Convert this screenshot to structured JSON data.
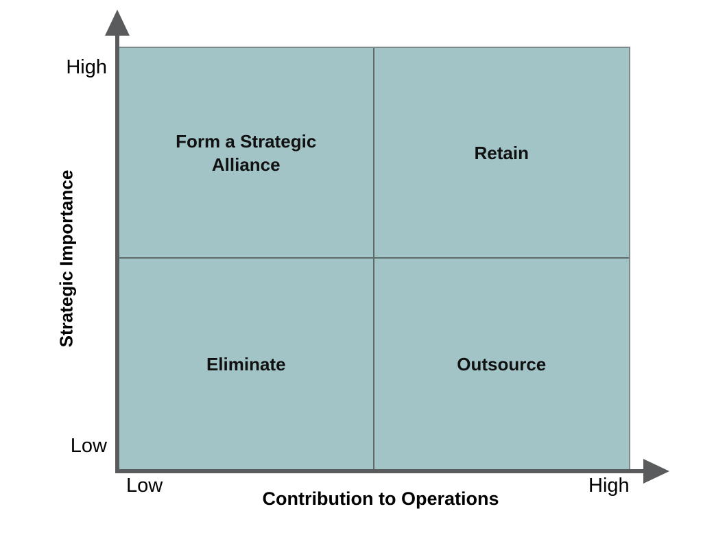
{
  "diagram": {
    "type": "2x2-quadrant-matrix",
    "y_axis": {
      "title": "Strategic Importance",
      "tick_high": "High",
      "tick_low": "Low"
    },
    "x_axis": {
      "title": "Contribution to Operations",
      "tick_low": "Low",
      "tick_high": "High"
    },
    "quadrants": {
      "top_left": "Form a Strategic Alliance",
      "top_right": "Retain",
      "bottom_left": "Eliminate",
      "bottom_right": "Outsource"
    },
    "colors": {
      "quadrant_fill": "#a2c4c7",
      "axis_arrow": "#595b5c",
      "matrix_border": "#7e8989",
      "divider": "#5f6a6a",
      "text": "#000000",
      "background": "#ffffff"
    }
  }
}
